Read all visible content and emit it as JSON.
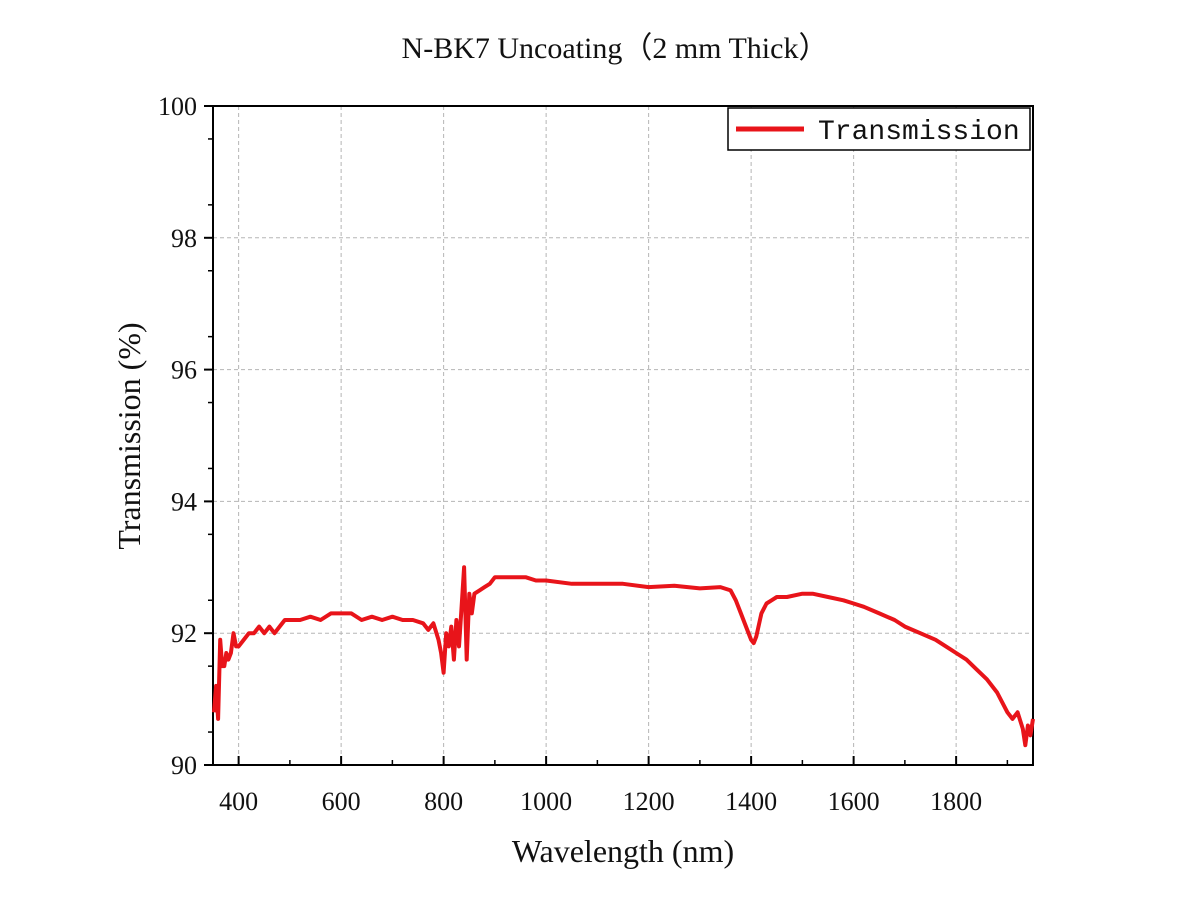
{
  "chart_data": {
    "type": "line",
    "title": "N-BK7 Uncoating（2 mm Thick）",
    "xlabel": "Wavelength (nm)",
    "ylabel": "Transmission (%)",
    "xlim": [
      350,
      1950
    ],
    "ylim": [
      90,
      100
    ],
    "x_ticks": [
      400,
      600,
      800,
      1000,
      1200,
      1400,
      1600,
      1800
    ],
    "y_ticks": [
      90,
      92,
      94,
      96,
      98,
      100
    ],
    "x_tick_labels": [
      "400",
      "600",
      "800",
      "1000",
      "1200",
      "1400",
      "1600",
      "1800"
    ],
    "y_tick_labels": [
      "90",
      "92",
      "94",
      "96",
      "98",
      "100"
    ],
    "grid": true,
    "legend": {
      "position": "top-right",
      "entries": [
        "Transmission"
      ]
    },
    "series": [
      {
        "name": "Transmission",
        "color": "#e8141a",
        "x": [
          352,
          356,
          360,
          364,
          368,
          372,
          376,
          380,
          385,
          390,
          395,
          400,
          410,
          420,
          430,
          440,
          450,
          460,
          470,
          480,
          490,
          500,
          520,
          540,
          560,
          580,
          600,
          620,
          640,
          660,
          680,
          700,
          720,
          740,
          760,
          770,
          780,
          790,
          795,
          800,
          805,
          810,
          815,
          820,
          825,
          830,
          835,
          840,
          845,
          850,
          855,
          860,
          870,
          880,
          890,
          900,
          920,
          940,
          960,
          980,
          1000,
          1050,
          1100,
          1150,
          1200,
          1250,
          1300,
          1340,
          1360,
          1370,
          1380,
          1390,
          1400,
          1405,
          1410,
          1420,
          1430,
          1440,
          1450,
          1470,
          1500,
          1520,
          1550,
          1580,
          1600,
          1620,
          1650,
          1680,
          1700,
          1730,
          1760,
          1790,
          1800,
          1820,
          1840,
          1860,
          1880,
          1900,
          1910,
          1920,
          1930,
          1935,
          1940,
          1945,
          1950
        ],
        "y": [
          90.8,
          91.2,
          90.7,
          91.9,
          91.5,
          91.5,
          91.7,
          91.6,
          91.7,
          92.0,
          91.8,
          91.8,
          91.9,
          92.0,
          92.0,
          92.1,
          92.0,
          92.1,
          92.0,
          92.1,
          92.2,
          92.2,
          92.2,
          92.25,
          92.2,
          92.3,
          92.3,
          92.3,
          92.2,
          92.25,
          92.2,
          92.25,
          92.2,
          92.2,
          92.15,
          92.05,
          92.15,
          91.9,
          91.7,
          91.4,
          92.0,
          91.8,
          92.1,
          91.6,
          92.2,
          91.8,
          92.4,
          93.0,
          91.6,
          92.6,
          92.3,
          92.6,
          92.65,
          92.7,
          92.75,
          92.85,
          92.85,
          92.85,
          92.85,
          92.8,
          92.8,
          92.75,
          92.75,
          92.75,
          92.7,
          92.72,
          92.68,
          92.7,
          92.65,
          92.5,
          92.3,
          92.1,
          91.9,
          91.85,
          91.95,
          92.3,
          92.45,
          92.5,
          92.55,
          92.55,
          92.6,
          92.6,
          92.55,
          92.5,
          92.45,
          92.4,
          92.3,
          92.2,
          92.1,
          92.0,
          91.9,
          91.75,
          91.7,
          91.6,
          91.45,
          91.3,
          91.1,
          90.8,
          90.7,
          90.8,
          90.55,
          90.3,
          90.6,
          90.45,
          90.7
        ]
      }
    ]
  }
}
